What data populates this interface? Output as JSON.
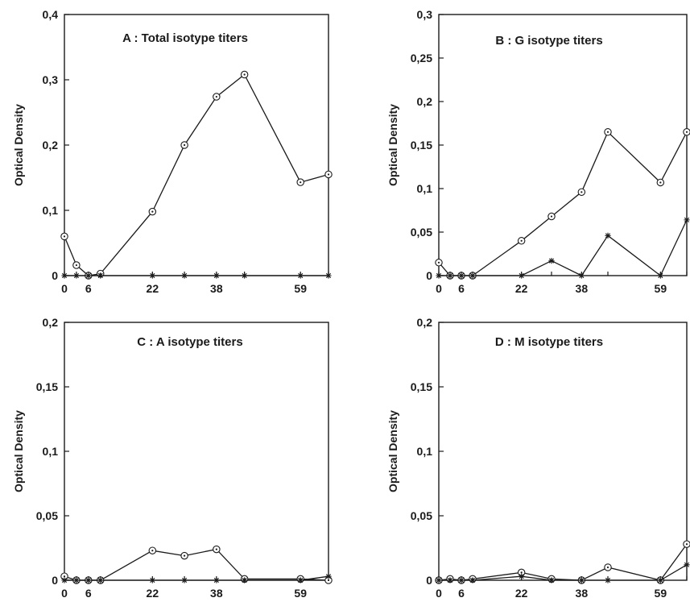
{
  "chart_data": [
    {
      "type": "line",
      "title": "A : Total isotype titers",
      "ylabel": "Optical Density",
      "xlabel": "",
      "x": [
        0,
        3,
        6,
        9,
        22,
        30,
        38,
        45,
        59,
        66
      ],
      "xticks": [
        0,
        6,
        22,
        38,
        59
      ],
      "ylim": [
        0,
        0.4
      ],
      "yticks": [
        "0",
        "0,1",
        "0,2",
        "0,3",
        "0,4"
      ],
      "yticks_values": [
        0,
        0.1,
        0.2,
        0.3,
        0.4
      ],
      "series": [
        {
          "marker": "circle",
          "values": [
            0.06,
            0.016,
            0.0,
            0.003,
            0.098,
            0.2,
            0.274,
            0.308,
            0.143,
            0.155
          ]
        },
        {
          "marker": "star",
          "values": [
            0,
            0,
            0,
            0,
            0,
            0,
            0,
            0,
            0,
            0
          ]
        }
      ]
    },
    {
      "type": "line",
      "title": "B : G isotype titers",
      "ylabel": "Optical Density",
      "xlabel": "",
      "x": [
        0,
        3,
        6,
        9,
        22,
        30,
        38,
        45,
        59,
        66
      ],
      "xticks": [
        0,
        6,
        22,
        38,
        59
      ],
      "ylim": [
        0,
        0.3
      ],
      "yticks": [
        "0",
        "0,05",
        "0,1",
        "0,15",
        "0,2",
        "0,25",
        "0,3"
      ],
      "yticks_values": [
        0,
        0.05,
        0.1,
        0.15,
        0.2,
        0.25,
        0.3
      ],
      "series": [
        {
          "marker": "circle",
          "values": [
            0.015,
            0.0,
            0.0,
            0.0,
            0.04,
            0.068,
            0.096,
            0.165,
            0.107,
            0.165
          ]
        },
        {
          "marker": "star",
          "values": [
            0,
            0,
            0,
            0,
            0,
            0.017,
            0,
            0.046,
            0,
            0.064
          ]
        }
      ]
    },
    {
      "type": "line",
      "title": "C : A isotype titers",
      "ylabel": "Optical Density",
      "xlabel": "",
      "x": [
        0,
        3,
        6,
        9,
        22,
        30,
        38,
        45,
        59,
        66
      ],
      "xticks": [
        0,
        6,
        22,
        38,
        59
      ],
      "ylim": [
        0,
        0.2
      ],
      "yticks": [
        "0",
        "0,05",
        "0,1",
        "0,15",
        "0,2"
      ],
      "yticks_values": [
        0,
        0.05,
        0.1,
        0.15,
        0.2
      ],
      "series": [
        {
          "marker": "circle",
          "values": [
            0.003,
            0.0,
            0.0,
            0.0,
            0.023,
            0.019,
            0.024,
            0.001,
            0.001,
            0.0
          ]
        },
        {
          "marker": "star",
          "values": [
            0,
            0,
            0,
            0,
            0,
            0,
            0,
            0,
            0,
            0.003
          ]
        }
      ]
    },
    {
      "type": "line",
      "title": "D : M isotype titers",
      "ylabel": "Optical Density",
      "xlabel": "",
      "x": [
        0,
        3,
        6,
        9,
        22,
        30,
        38,
        45,
        59,
        66
      ],
      "xticks": [
        0,
        6,
        22,
        38,
        59
      ],
      "ylim": [
        0,
        0.2
      ],
      "yticks": [
        "0",
        "0,05",
        "0,1",
        "0,15",
        "0,2"
      ],
      "yticks_values": [
        0,
        0.05,
        0.1,
        0.15,
        0.2
      ],
      "series": [
        {
          "marker": "circle",
          "values": [
            0.0,
            0.001,
            0.0,
            0.001,
            0.006,
            0.001,
            0.0,
            0.01,
            0.0,
            0.028
          ]
        },
        {
          "marker": "star",
          "values": [
            0,
            0,
            0,
            0,
            0.003,
            0,
            0,
            0,
            0,
            0.012
          ]
        }
      ]
    }
  ]
}
